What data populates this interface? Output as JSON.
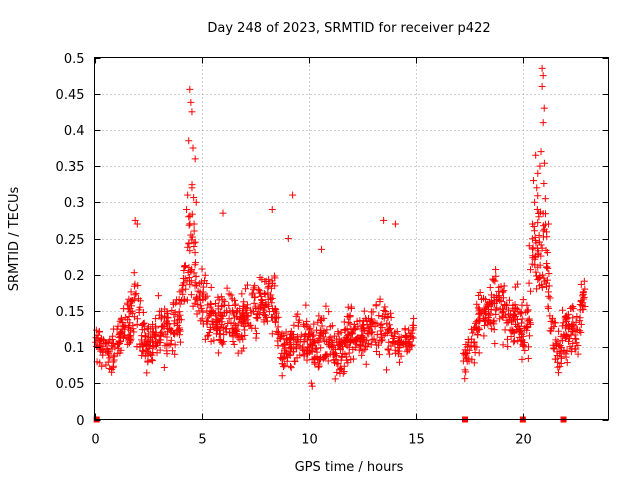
{
  "chart_data": {
    "type": "scatter",
    "title": "Day 248 of 2023, SRMTID for receiver p422",
    "xlabel": "GPS time / hours",
    "ylabel": "SRMTID / TECUs",
    "xlim": [
      0,
      24
    ],
    "ylim": [
      0,
      0.5
    ],
    "xticks": [
      0,
      5,
      10,
      15,
      20
    ],
    "xtick_labels": [
      "0",
      "5",
      "10",
      "15",
      "20"
    ],
    "yticks": [
      0,
      0.05,
      0.1,
      0.15,
      0.2,
      0.25,
      0.3,
      0.35,
      0.4,
      0.45,
      0.5
    ],
    "ytick_labels": [
      "0",
      "0.05",
      "0.1",
      "0.15",
      "0.2",
      "0.25",
      "0.3",
      "0.35",
      "0.4",
      "0.45",
      "0.5"
    ],
    "grid": true,
    "marker": "+",
    "color": "#ff0000",
    "zero_points_x": [
      0.1,
      17.3,
      20.0,
      21.9
    ],
    "envelope": [
      {
        "x": [
          0.0,
          0.5,
          1.0,
          1.5,
          1.9,
          2.4,
          3.0,
          3.5,
          4.0,
          4.4,
          4.6,
          4.8,
          5.2,
          5.8,
          6.5,
          7.0,
          7.5,
          8.0,
          8.3,
          8.7,
          9.2,
          9.7,
          10.2,
          10.8,
          11.4,
          12.0,
          12.5,
          13.0,
          13.6,
          14.2,
          14.9
        ],
        "center": [
          0.11,
          0.09,
          0.1,
          0.13,
          0.16,
          0.1,
          0.12,
          0.13,
          0.14,
          0.22,
          0.25,
          0.17,
          0.15,
          0.14,
          0.13,
          0.14,
          0.15,
          0.16,
          0.17,
          0.09,
          0.1,
          0.11,
          0.1,
          0.11,
          0.09,
          0.12,
          0.11,
          0.13,
          0.12,
          0.1,
          0.12
        ],
        "spread": [
          0.03,
          0.03,
          0.04,
          0.05,
          0.06,
          0.04,
          0.05,
          0.05,
          0.05,
          0.09,
          0.12,
          0.05,
          0.05,
          0.05,
          0.05,
          0.05,
          0.05,
          0.06,
          0.06,
          0.04,
          0.04,
          0.05,
          0.05,
          0.05,
          0.04,
          0.05,
          0.04,
          0.05,
          0.05,
          0.04,
          0.03
        ]
      },
      {
        "x": [
          17.2,
          17.6,
          18.0,
          18.5,
          19.0,
          19.4,
          19.8,
          20.2,
          20.5,
          20.8,
          21.0,
          21.3,
          21.6,
          22.0,
          22.4,
          22.9
        ],
        "center": [
          0.08,
          0.1,
          0.14,
          0.15,
          0.16,
          0.13,
          0.14,
          0.12,
          0.22,
          0.25,
          0.28,
          0.14,
          0.09,
          0.12,
          0.12,
          0.16
        ],
        "spread": [
          0.03,
          0.04,
          0.05,
          0.05,
          0.05,
          0.05,
          0.05,
          0.05,
          0.09,
          0.1,
          0.12,
          0.05,
          0.04,
          0.05,
          0.05,
          0.04
        ]
      }
    ],
    "peaks": [
      {
        "x": 4.45,
        "y": 0.456
      },
      {
        "x": 4.5,
        "y": 0.438
      },
      {
        "x": 4.55,
        "y": 0.425
      },
      {
        "x": 4.4,
        "y": 0.385
      },
      {
        "x": 4.6,
        "y": 0.375
      },
      {
        "x": 4.7,
        "y": 0.36
      },
      {
        "x": 4.55,
        "y": 0.32
      },
      {
        "x": 4.35,
        "y": 0.31
      },
      {
        "x": 4.75,
        "y": 0.3
      },
      {
        "x": 4.3,
        "y": 0.29
      },
      {
        "x": 4.4,
        "y": 0.28
      },
      {
        "x": 4.65,
        "y": 0.27
      },
      {
        "x": 1.9,
        "y": 0.275
      },
      {
        "x": 2.0,
        "y": 0.27
      },
      {
        "x": 6.0,
        "y": 0.285
      },
      {
        "x": 8.3,
        "y": 0.29
      },
      {
        "x": 9.25,
        "y": 0.31
      },
      {
        "x": 9.05,
        "y": 0.25
      },
      {
        "x": 10.6,
        "y": 0.235
      },
      {
        "x": 13.5,
        "y": 0.275
      },
      {
        "x": 14.05,
        "y": 0.27
      },
      {
        "x": 20.9,
        "y": 0.485
      },
      {
        "x": 20.95,
        "y": 0.475
      },
      {
        "x": 20.9,
        "y": 0.46
      },
      {
        "x": 21.0,
        "y": 0.43
      },
      {
        "x": 20.95,
        "y": 0.41
      },
      {
        "x": 20.85,
        "y": 0.37
      },
      {
        "x": 20.8,
        "y": 0.35
      },
      {
        "x": 20.6,
        "y": 0.365
      },
      {
        "x": 20.7,
        "y": 0.34
      },
      {
        "x": 20.65,
        "y": 0.32
      },
      {
        "x": 20.5,
        "y": 0.33
      },
      {
        "x": 21.05,
        "y": 0.305
      },
      {
        "x": 20.55,
        "y": 0.3
      },
      {
        "x": 20.75,
        "y": 0.28
      },
      {
        "x": 21.2,
        "y": 0.27
      },
      {
        "x": 20.45,
        "y": 0.27
      },
      {
        "x": 20.3,
        "y": 0.24
      }
    ]
  }
}
